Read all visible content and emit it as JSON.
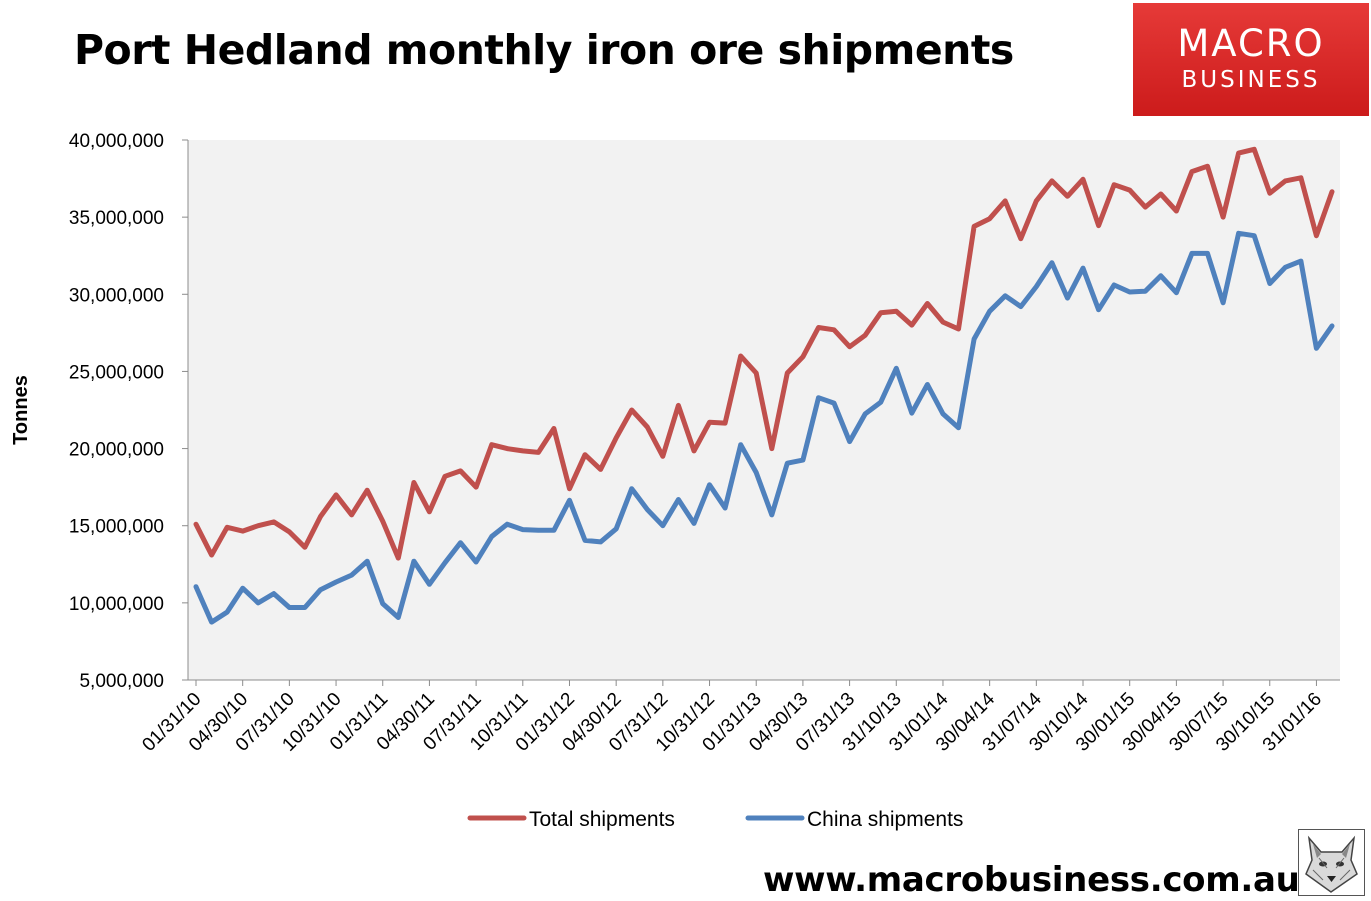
{
  "header": {
    "title": "Port Hedland monthly iron ore shipments"
  },
  "logo": {
    "line1": "MACRO",
    "line2": "BUSINESS"
  },
  "footer": {
    "url": "www.macrobusiness.com.au"
  },
  "chart_data": {
    "type": "line",
    "title": "Port Hedland monthly iron ore shipments",
    "xlabel": "",
    "ylabel": "Tonnes",
    "ylim": [
      5000000,
      40000000
    ],
    "yticks": [
      5000000,
      10000000,
      15000000,
      20000000,
      25000000,
      30000000,
      35000000,
      40000000
    ],
    "ytick_labels": [
      "5,000,000",
      "10,000,000",
      "15,000,000",
      "20,000,000",
      "25,000,000",
      "30,000,000",
      "35,000,000",
      "40,000,000"
    ],
    "grid": false,
    "legend": "bottom",
    "x_tick_labels": [
      "01/31/10",
      "04/30/10",
      "07/31/10",
      "10/31/10",
      "01/31/11",
      "04/30/11",
      "07/31/11",
      "10/31/11",
      "01/31/12",
      "04/30/12",
      "07/31/12",
      "10/31/12",
      "01/31/13",
      "04/30/13",
      "07/31/13",
      "31/10/13",
      "31/01/14",
      "30/04/14",
      "31/07/14",
      "30/10/14",
      "30/01/15",
      "30/04/15",
      "30/07/15",
      "30/10/15",
      "31/01/16"
    ],
    "x_tick_every": 3,
    "series": [
      {
        "name": "Total shipments",
        "color": "#c0504d",
        "values": [
          15100000,
          13100000,
          14900000,
          14650000,
          15000000,
          15250000,
          14600000,
          13600000,
          15600000,
          17000000,
          15700000,
          17300000,
          15300000,
          12900000,
          17800000,
          15900000,
          18200000,
          18550000,
          17500000,
          20250000,
          20000000,
          19850000,
          19750000,
          21300000,
          17400000,
          19600000,
          18650000,
          20700000,
          22500000,
          21400000,
          19500000,
          22800000,
          19850000,
          21700000,
          21650000,
          26000000,
          24900000,
          20000000,
          24900000,
          25950000,
          27850000,
          27700000,
          26600000,
          27350000,
          28800000,
          28900000,
          28000000,
          29400000,
          28200000,
          27750000,
          34400000,
          34900000,
          36050000,
          33600000,
          36050000,
          37350000,
          36350000,
          37450000,
          34450000,
          37100000,
          36750000,
          35650000,
          36500000,
          35400000,
          37950000,
          38300000,
          35000000,
          39150000,
          39400000,
          36550000,
          37350000,
          37550000,
          33800000,
          36650000
        ]
      },
      {
        "name": "China shipments",
        "color": "#4f81bd",
        "values": [
          11050000,
          8750000,
          9400000,
          10950000,
          10000000,
          10600000,
          9700000,
          9700000,
          10850000,
          11350000,
          11800000,
          12700000,
          9950000,
          9050000,
          12700000,
          11200000,
          12600000,
          13900000,
          12650000,
          14300000,
          15100000,
          14750000,
          14700000,
          14700000,
          16650000,
          14050000,
          13950000,
          14800000,
          17400000,
          16050000,
          15000000,
          16700000,
          15150000,
          17650000,
          16150000,
          20250000,
          18450000,
          15700000,
          19050000,
          19250000,
          23300000,
          22950000,
          20450000,
          22250000,
          23000000,
          25200000,
          22300000,
          24150000,
          22250000,
          21350000,
          27100000,
          28900000,
          29900000,
          29200000,
          30500000,
          32050000,
          29750000,
          31700000,
          29000000,
          30600000,
          30150000,
          30200000,
          31200000,
          30100000,
          32650000,
          32650000,
          29450000,
          33950000,
          33800000,
          30700000,
          31750000,
          32150000,
          26500000,
          27950000
        ]
      }
    ]
  }
}
